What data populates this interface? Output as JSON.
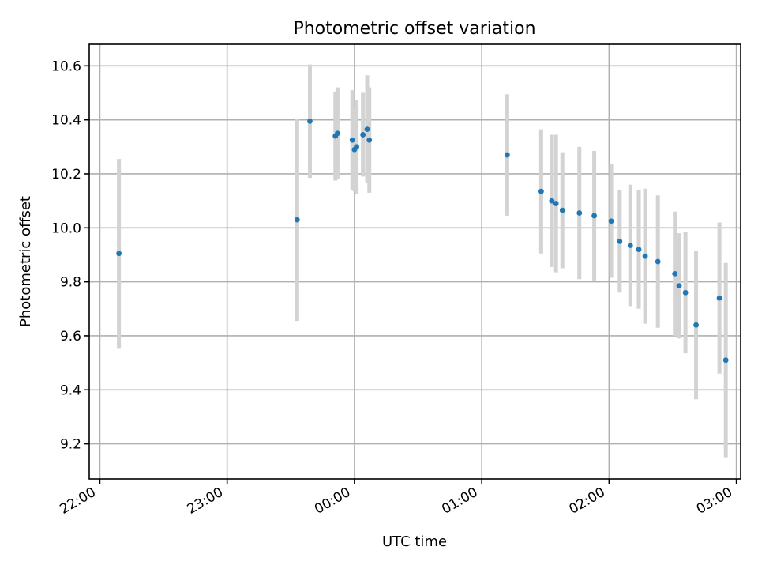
{
  "chart_data": {
    "type": "scatter",
    "title": "Photometric offset variation",
    "xlabel": "UTC time",
    "ylabel": "Photometric offset",
    "x_is_time": true,
    "xlim": [
      "21:55",
      "03:02"
    ],
    "ylim": [
      9.07,
      10.68
    ],
    "x_ticks": [
      "22:00",
      "23:00",
      "00:00",
      "01:00",
      "02:00",
      "03:00"
    ],
    "y_ticks": [
      9.2,
      9.4,
      9.6,
      9.8,
      10.0,
      10.2,
      10.4,
      10.6
    ],
    "grid": true,
    "colors": {
      "point": "#1f77b4",
      "errorbar": "#d3d3d3"
    },
    "series": [
      {
        "points": [
          {
            "t": "22:09",
            "y": 9.905,
            "err": 0.35
          },
          {
            "t": "23:33",
            "y": 10.03,
            "err": 0.375
          },
          {
            "t": "23:39",
            "y": 10.395,
            "err": 0.21
          },
          {
            "t": "23:51",
            "y": 10.34,
            "err": 0.165
          },
          {
            "t": "23:52",
            "y": 10.35,
            "err": 0.17
          },
          {
            "t": "23:59",
            "y": 10.325,
            "err": 0.185
          },
          {
            "t": "00:00",
            "y": 10.29,
            "err": 0.155
          },
          {
            "t": "00:01",
            "y": 10.3,
            "err": 0.175
          },
          {
            "t": "00:04",
            "y": 10.345,
            "err": 0.155
          },
          {
            "t": "00:06",
            "y": 10.365,
            "err": 0.2
          },
          {
            "t": "00:07",
            "y": 10.325,
            "err": 0.195
          },
          {
            "t": "01:12",
            "y": 10.27,
            "err": 0.225
          },
          {
            "t": "01:28",
            "y": 10.135,
            "err": 0.23
          },
          {
            "t": "01:33",
            "y": 10.1,
            "err": 0.245
          },
          {
            "t": "01:35",
            "y": 10.09,
            "err": 0.255
          },
          {
            "t": "01:38",
            "y": 10.065,
            "err": 0.215
          },
          {
            "t": "01:46",
            "y": 10.055,
            "err": 0.245
          },
          {
            "t": "01:53",
            "y": 10.045,
            "err": 0.24
          },
          {
            "t": "02:01",
            "y": 10.025,
            "err": 0.21
          },
          {
            "t": "02:05",
            "y": 9.95,
            "err": 0.19
          },
          {
            "t": "02:10",
            "y": 9.935,
            "err": 0.225
          },
          {
            "t": "02:14",
            "y": 9.92,
            "err": 0.22
          },
          {
            "t": "02:17",
            "y": 9.895,
            "err": 0.25
          },
          {
            "t": "02:23",
            "y": 9.875,
            "err": 0.245
          },
          {
            "t": "02:31",
            "y": 9.83,
            "err": 0.23
          },
          {
            "t": "02:33",
            "y": 9.785,
            "err": 0.195
          },
          {
            "t": "02:36",
            "y": 9.76,
            "err": 0.225
          },
          {
            "t": "02:41",
            "y": 9.64,
            "err": 0.275
          },
          {
            "t": "02:52",
            "y": 9.74,
            "err": 0.28
          },
          {
            "t": "02:55",
            "y": 9.51,
            "err": 0.36
          }
        ]
      }
    ]
  }
}
